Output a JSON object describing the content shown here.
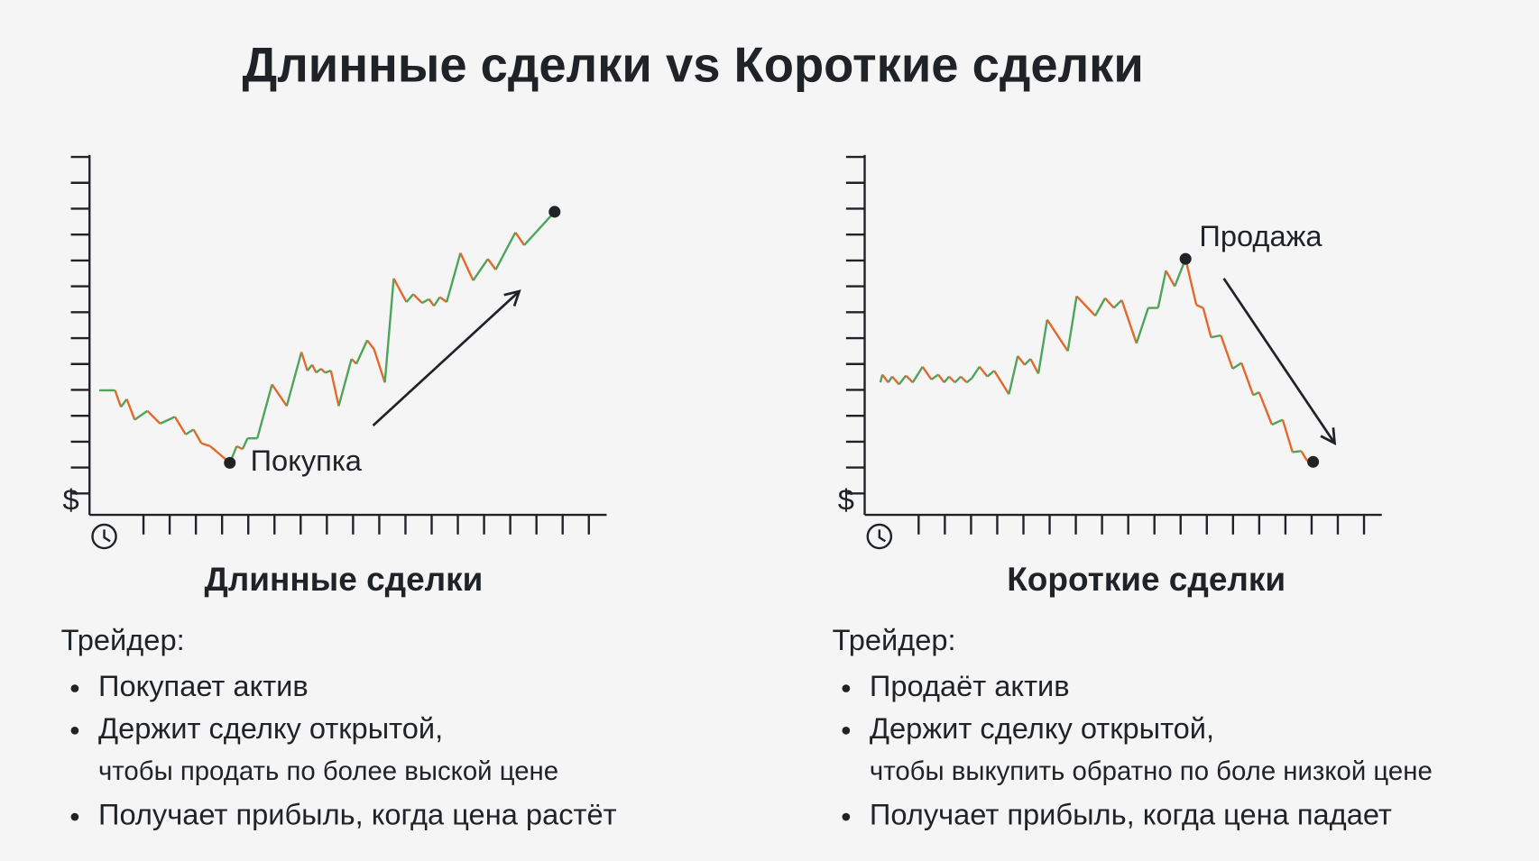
{
  "title": "Длинные сделки vs Короткие сделки",
  "panels": [
    {
      "currency": "$",
      "marker_label": "Покупка",
      "heading": "Длинные сделки",
      "lead": "Трейдер:",
      "bullets": [
        [
          "Покупает актив"
        ],
        [
          "Держит сделку открытой,",
          "чтобы продать по более выской цене"
        ],
        [
          "Получает прибыль, когда цена растёт"
        ]
      ]
    },
    {
      "currency": "$",
      "marker_label": "Продажа",
      "heading": "Короткие сделки",
      "lead": "Трейдер:",
      "bullets": [
        [
          "Продаёт актив"
        ],
        [
          "Держит сделку открытой,",
          "чтобы выкупить обратно по боле низкой цене"
        ],
        [
          "Получает прибыль, когда цена падает"
        ]
      ]
    }
  ]
}
